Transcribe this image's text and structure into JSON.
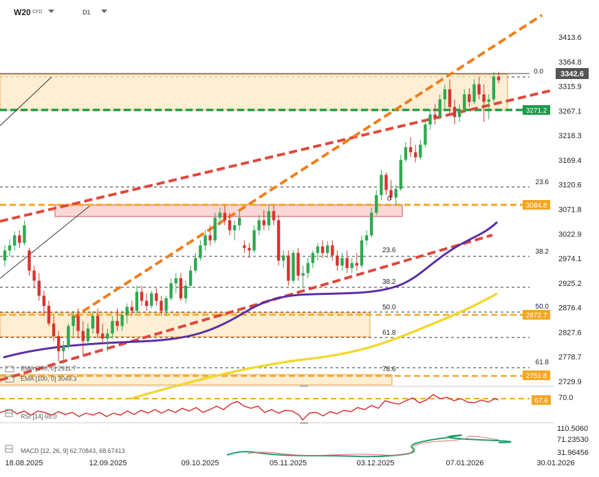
{
  "header": {
    "symbol": "W20",
    "symbol_sub": "CFD",
    "timeframe": "D1"
  },
  "chart_data": {
    "type": "candlestick",
    "instrument": "W20 CFD",
    "timeframe": "D1",
    "price_axis": {
      "ticks": [
        "3413.6",
        "3364.8",
        "3315.9",
        "3267.1",
        "3218.3",
        "3169.4",
        "3120.6",
        "3071.8",
        "3022.9",
        "2974.1",
        "2925.2",
        "2876.4",
        "2827.6",
        "2778.7",
        "2729.9"
      ],
      "min": 2729.9,
      "max": 3413.6
    },
    "time_axis": {
      "ticks": [
        "18.08.2025",
        "12.09.2025",
        "09.10.2025",
        "05.11.2025",
        "03.12.2025",
        "07.01.2026",
        "30.01.2026"
      ]
    },
    "last_price": "3342.6",
    "price_labels": [
      {
        "text": "3342.6",
        "role": "last"
      },
      {
        "text": "3271.2",
        "role": "support"
      },
      {
        "text": "3084.8",
        "role": "resistance"
      },
      {
        "text": "2872.7",
        "role": "level"
      },
      {
        "text": "2751.8",
        "role": "level"
      }
    ],
    "fibonacci_right": [
      {
        "text": "0.0",
        "price": 3342.6
      },
      {
        "text": "23.6",
        "price": 3120.6
      },
      {
        "text": "38.2",
        "price": 2985
      },
      {
        "text": "50.0",
        "price": 2878
      },
      {
        "text": "61.8",
        "price": 2770
      }
    ],
    "fibonacci_left": [
      {
        "text": "0",
        "price": 3084.8
      },
      {
        "text": "23.6",
        "price": 2994
      },
      {
        "text": "38.2",
        "price": 2937
      },
      {
        "text": "50.0",
        "price": 2891
      },
      {
        "text": "61.8",
        "price": 2846
      },
      {
        "text": "78.6",
        "price": 2781
      }
    ],
    "ema_200": {
      "legend": "EMA [200, 0] 2911.7"
    },
    "ema_100": {
      "legend": "EMA [100, 0] 3049.3"
    },
    "candles": [
      {
        "t": "2025-08-18",
        "o": 2970,
        "h": 3001,
        "l": 2958,
        "c": 2990
      },
      {
        "t": "2025-08-19",
        "o": 2990,
        "h": 3012,
        "l": 2978,
        "c": 3000
      },
      {
        "t": "2025-08-20",
        "o": 3000,
        "h": 3028,
        "l": 2990,
        "c": 3020
      },
      {
        "t": "2025-08-21",
        "o": 3020,
        "h": 3030,
        "l": 2995,
        "c": 3005
      },
      {
        "t": "2025-08-22",
        "o": 3005,
        "h": 3050,
        "l": 3000,
        "c": 3040
      },
      {
        "t": "2025-08-25",
        "o": 2990,
        "h": 2995,
        "l": 2940,
        "c": 2950
      },
      {
        "t": "2025-08-26",
        "o": 2950,
        "h": 2960,
        "l": 2915,
        "c": 2930
      },
      {
        "t": "2025-08-27",
        "o": 2930,
        "h": 2945,
        "l": 2890,
        "c": 2900
      },
      {
        "t": "2025-08-28",
        "o": 2900,
        "h": 2910,
        "l": 2860,
        "c": 2880
      },
      {
        "t": "2025-08-29",
        "o": 2880,
        "h": 2890,
        "l": 2840,
        "c": 2845
      },
      {
        "t": "2025-09-01",
        "o": 2845,
        "h": 2860,
        "l": 2810,
        "c": 2820
      },
      {
        "t": "2025-09-02",
        "o": 2820,
        "h": 2830,
        "l": 2770,
        "c": 2790
      },
      {
        "t": "2025-09-03",
        "o": 2790,
        "h": 2810,
        "l": 2765,
        "c": 2800
      },
      {
        "t": "2025-09-04",
        "o": 2800,
        "h": 2845,
        "l": 2795,
        "c": 2840
      },
      {
        "t": "2025-09-05",
        "o": 2840,
        "h": 2870,
        "l": 2820,
        "c": 2860
      },
      {
        "t": "2025-09-08",
        "o": 2860,
        "h": 2875,
        "l": 2815,
        "c": 2830
      },
      {
        "t": "2025-09-09",
        "o": 2830,
        "h": 2850,
        "l": 2780,
        "c": 2810
      },
      {
        "t": "2025-09-10",
        "o": 2810,
        "h": 2845,
        "l": 2800,
        "c": 2835
      },
      {
        "t": "2025-09-11",
        "o": 2835,
        "h": 2870,
        "l": 2825,
        "c": 2860
      },
      {
        "t": "2025-09-12",
        "o": 2860,
        "h": 2875,
        "l": 2815,
        "c": 2825
      },
      {
        "t": "2025-09-15",
        "o": 2825,
        "h": 2845,
        "l": 2805,
        "c": 2815
      },
      {
        "t": "2025-09-16",
        "o": 2815,
        "h": 2835,
        "l": 2790,
        "c": 2825
      },
      {
        "t": "2025-09-17",
        "o": 2825,
        "h": 2860,
        "l": 2815,
        "c": 2850
      },
      {
        "t": "2025-09-18",
        "o": 2850,
        "h": 2875,
        "l": 2830,
        "c": 2840
      },
      {
        "t": "2025-09-19",
        "o": 2840,
        "h": 2870,
        "l": 2830,
        "c": 2862
      },
      {
        "t": "2025-09-22",
        "o": 2862,
        "h": 2885,
        "l": 2845,
        "c": 2878
      },
      {
        "t": "2025-09-23",
        "o": 2878,
        "h": 2890,
        "l": 2860,
        "c": 2870
      },
      {
        "t": "2025-09-24",
        "o": 2870,
        "h": 2920,
        "l": 2865,
        "c": 2908
      },
      {
        "t": "2025-09-25",
        "o": 2908,
        "h": 2920,
        "l": 2880,
        "c": 2890
      },
      {
        "t": "2025-09-26",
        "o": 2890,
        "h": 2905,
        "l": 2870,
        "c": 2880
      },
      {
        "t": "2025-09-29",
        "o": 2880,
        "h": 2910,
        "l": 2875,
        "c": 2905
      },
      {
        "t": "2025-09-30",
        "o": 2905,
        "h": 2915,
        "l": 2880,
        "c": 2890
      },
      {
        "t": "2025-10-01",
        "o": 2890,
        "h": 2900,
        "l": 2860,
        "c": 2870
      },
      {
        "t": "2025-10-02",
        "o": 2870,
        "h": 2900,
        "l": 2860,
        "c": 2895
      },
      {
        "t": "2025-10-03",
        "o": 2895,
        "h": 2935,
        "l": 2890,
        "c": 2925
      },
      {
        "t": "2025-10-06",
        "o": 2925,
        "h": 2945,
        "l": 2905,
        "c": 2935
      },
      {
        "t": "2025-10-07",
        "o": 2935,
        "h": 2945,
        "l": 2890,
        "c": 2895
      },
      {
        "t": "2025-10-08",
        "o": 2895,
        "h": 2930,
        "l": 2885,
        "c": 2920
      },
      {
        "t": "2025-10-09",
        "o": 2920,
        "h": 2960,
        "l": 2915,
        "c": 2950
      },
      {
        "t": "2025-10-10",
        "o": 2950,
        "h": 2985,
        "l": 2945,
        "c": 2975
      },
      {
        "t": "2025-10-13",
        "o": 2975,
        "h": 3010,
        "l": 2970,
        "c": 3000
      },
      {
        "t": "2025-10-14",
        "o": 3000,
        "h": 3030,
        "l": 2990,
        "c": 3020
      },
      {
        "t": "2025-10-15",
        "o": 3020,
        "h": 3040,
        "l": 3000,
        "c": 3010
      },
      {
        "t": "2025-10-16",
        "o": 3010,
        "h": 3065,
        "l": 3005,
        "c": 3055
      },
      {
        "t": "2025-10-17",
        "o": 3055,
        "h": 3075,
        "l": 3040,
        "c": 3065
      },
      {
        "t": "2025-10-20",
        "o": 3065,
        "h": 3080,
        "l": 3040,
        "c": 3050
      },
      {
        "t": "2025-10-21",
        "o": 3050,
        "h": 3065,
        "l": 3020,
        "c": 3030
      },
      {
        "t": "2025-10-22",
        "o": 3030,
        "h": 3050,
        "l": 3010,
        "c": 3040
      },
      {
        "t": "2025-10-23",
        "o": 3040,
        "h": 3070,
        "l": 3030,
        "c": 3055
      },
      {
        "t": "2025-10-24",
        "o": 3000,
        "h": 3010,
        "l": 2985,
        "c": 2995
      },
      {
        "t": "2025-10-27",
        "o": 2995,
        "h": 3005,
        "l": 2975,
        "c": 2990
      },
      {
        "t": "2025-10-28",
        "o": 2990,
        "h": 3040,
        "l": 2985,
        "c": 3030
      },
      {
        "t": "2025-10-29",
        "o": 3030,
        "h": 3060,
        "l": 3020,
        "c": 3050
      },
      {
        "t": "2025-10-30",
        "o": 3050,
        "h": 3070,
        "l": 3030,
        "c": 3040
      },
      {
        "t": "2025-10-31",
        "o": 3040,
        "h": 3080,
        "l": 3030,
        "c": 3068
      },
      {
        "t": "2025-11-03",
        "o": 3068,
        "h": 3080,
        "l": 3040,
        "c": 3050
      },
      {
        "t": "2025-11-04",
        "o": 3050,
        "h": 3060,
        "l": 2960,
        "c": 2970
      },
      {
        "t": "2025-11-05",
        "o": 2970,
        "h": 2990,
        "l": 2955,
        "c": 2980
      },
      {
        "t": "2025-11-06",
        "o": 2980,
        "h": 2990,
        "l": 2920,
        "c": 2930
      },
      {
        "t": "2025-11-07",
        "o": 2930,
        "h": 2990,
        "l": 2925,
        "c": 2985
      },
      {
        "t": "2025-11-10",
        "o": 2985,
        "h": 2995,
        "l": 2930,
        "c": 2940
      },
      {
        "t": "2025-11-11",
        "o": 2940,
        "h": 2960,
        "l": 2915,
        "c": 2945
      },
      {
        "t": "2025-11-12",
        "o": 2945,
        "h": 2975,
        "l": 2935,
        "c": 2965
      },
      {
        "t": "2025-11-13",
        "o": 2965,
        "h": 2990,
        "l": 2955,
        "c": 2985
      },
      {
        "t": "2025-11-14",
        "o": 2985,
        "h": 3005,
        "l": 2970,
        "c": 2998
      },
      {
        "t": "2025-11-17",
        "o": 2998,
        "h": 3010,
        "l": 2975,
        "c": 2985
      },
      {
        "t": "2025-11-18",
        "o": 2985,
        "h": 3008,
        "l": 2975,
        "c": 3000
      },
      {
        "t": "2025-11-19",
        "o": 3000,
        "h": 3010,
        "l": 2970,
        "c": 2980
      },
      {
        "t": "2025-11-20",
        "o": 2980,
        "h": 2990,
        "l": 2950,
        "c": 2960
      },
      {
        "t": "2025-11-21",
        "o": 2960,
        "h": 2985,
        "l": 2950,
        "c": 2975
      },
      {
        "t": "2025-11-24",
        "o": 2975,
        "h": 2990,
        "l": 2945,
        "c": 2955
      },
      {
        "t": "2025-11-25",
        "o": 2955,
        "h": 2975,
        "l": 2945,
        "c": 2965
      },
      {
        "t": "2025-11-26",
        "o": 2965,
        "h": 2985,
        "l": 2950,
        "c": 2960
      },
      {
        "t": "2025-11-27",
        "o": 2960,
        "h": 3020,
        "l": 2955,
        "c": 3010
      },
      {
        "t": "2025-11-28",
        "o": 3010,
        "h": 3030,
        "l": 3000,
        "c": 3020
      },
      {
        "t": "2025-12-01",
        "o": 3020,
        "h": 3075,
        "l": 3015,
        "c": 3065
      },
      {
        "t": "2025-12-02",
        "o": 3065,
        "h": 3110,
        "l": 3060,
        "c": 3100
      },
      {
        "t": "2025-12-03",
        "o": 3100,
        "h": 3150,
        "l": 3090,
        "c": 3140
      },
      {
        "t": "2025-12-04",
        "o": 3140,
        "h": 3145,
        "l": 3100,
        "c": 3110
      },
      {
        "t": "2025-12-05",
        "o": 3110,
        "h": 3130,
        "l": 3090,
        "c": 3095
      },
      {
        "t": "2025-12-08",
        "o": 3095,
        "h": 3120,
        "l": 3080,
        "c": 3112
      },
      {
        "t": "2025-12-09",
        "o": 3112,
        "h": 3180,
        "l": 3108,
        "c": 3170
      },
      {
        "t": "2025-12-10",
        "o": 3170,
        "h": 3205,
        "l": 3165,
        "c": 3195
      },
      {
        "t": "2025-12-11",
        "o": 3195,
        "h": 3215,
        "l": 3175,
        "c": 3185
      },
      {
        "t": "2025-12-12",
        "o": 3185,
        "h": 3200,
        "l": 3165,
        "c": 3175
      },
      {
        "t": "2025-12-15",
        "o": 3175,
        "h": 3210,
        "l": 3170,
        "c": 3200
      },
      {
        "t": "2025-12-16",
        "o": 3200,
        "h": 3250,
        "l": 3195,
        "c": 3240
      },
      {
        "t": "2025-12-17",
        "o": 3240,
        "h": 3270,
        "l": 3230,
        "c": 3260
      },
      {
        "t": "2025-12-18",
        "o": 3260,
        "h": 3280,
        "l": 3240,
        "c": 3255
      },
      {
        "t": "2025-12-19",
        "o": 3255,
        "h": 3300,
        "l": 3250,
        "c": 3290
      },
      {
        "t": "2025-12-22",
        "o": 3290,
        "h": 3320,
        "l": 3270,
        "c": 3310
      },
      {
        "t": "2025-12-23",
        "o": 3310,
        "h": 3330,
        "l": 3260,
        "c": 3275
      },
      {
        "t": "2025-12-24",
        "o": 3275,
        "h": 3290,
        "l": 3240,
        "c": 3255
      },
      {
        "t": "2025-12-29",
        "o": 3255,
        "h": 3280,
        "l": 3245,
        "c": 3270
      },
      {
        "t": "2025-12-30",
        "o": 3270,
        "h": 3310,
        "l": 3265,
        "c": 3300
      },
      {
        "t": "2025-12-31",
        "o": 3300,
        "h": 3312,
        "l": 3275,
        "c": 3285
      },
      {
        "t": "2026-01-02",
        "o": 3285,
        "h": 3330,
        "l": 3280,
        "c": 3320
      },
      {
        "t": "2026-01-05",
        "o": 3320,
        "h": 3335,
        "l": 3290,
        "c": 3300
      },
      {
        "t": "2026-01-06",
        "o": 3300,
        "h": 3320,
        "l": 3245,
        "c": 3285
      },
      {
        "t": "2026-01-07",
        "o": 3285,
        "h": 3300,
        "l": 3250,
        "c": 3290
      },
      {
        "t": "2026-01-08",
        "o": 3290,
        "h": 3345,
        "l": 3285,
        "c": 3335
      },
      {
        "t": "2026-01-09",
        "o": 3335,
        "h": 3345,
        "l": 3322,
        "c": 3328
      }
    ],
    "indicators": [
      {
        "name": "RSI",
        "legend": "RSI [14] 65.0",
        "axis_labels": [
          "70.0"
        ],
        "level_label": "67.6"
      },
      {
        "name": "MACD",
        "legend": "MACD [12, 26, 9] 62.70843, 68.67413",
        "axis_labels": [
          "110.5060",
          "71.23530",
          "31.96456"
        ]
      }
    ]
  }
}
